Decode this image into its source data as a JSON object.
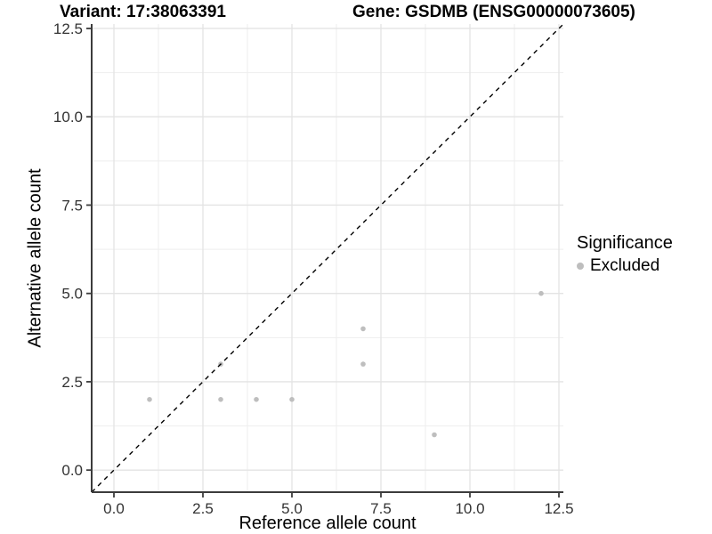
{
  "titles": {
    "left": "Variant: 17:38063391",
    "right": "Gene: GSDMB (ENSG00000073605)"
  },
  "chart_data": {
    "type": "scatter",
    "xlabel": "Reference allele count",
    "ylabel": "Alternative allele count",
    "xlim": [
      -0.625,
      12.625
    ],
    "ylim": [
      -0.625,
      12.625
    ],
    "major_ticks": [
      0,
      2.5,
      5,
      7.5,
      10,
      12.5
    ],
    "minor_ticks": [
      1.25,
      3.75,
      6.25,
      8.75,
      11.25
    ],
    "tick_labels": [
      "0.0",
      "2.5",
      "5.0",
      "7.5",
      "10.0",
      "12.5"
    ],
    "grid": "major-and-minor",
    "series": [
      {
        "name": "Excluded",
        "color": "#bebebe",
        "points": [
          [
            1,
            2
          ],
          [
            3,
            2
          ],
          [
            3,
            3
          ],
          [
            4,
            2
          ],
          [
            5,
            2
          ],
          [
            7,
            3
          ],
          [
            7,
            4
          ],
          [
            9,
            1
          ],
          [
            12,
            5
          ]
        ]
      }
    ],
    "reference_line": {
      "slope": 1,
      "intercept": 0,
      "style": "dashed",
      "color": "#000000"
    },
    "legend": {
      "title": "Significance",
      "position": "right",
      "items": [
        {
          "label": "Excluded",
          "color": "#bebebe"
        }
      ]
    }
  },
  "colors": {
    "background": "#ffffff",
    "grid_major": "#e3e3e3",
    "grid_minor": "#eeeeee",
    "axis_line": "#3c3c3c",
    "tick_text": "#333333",
    "point": "#bebebe"
  }
}
